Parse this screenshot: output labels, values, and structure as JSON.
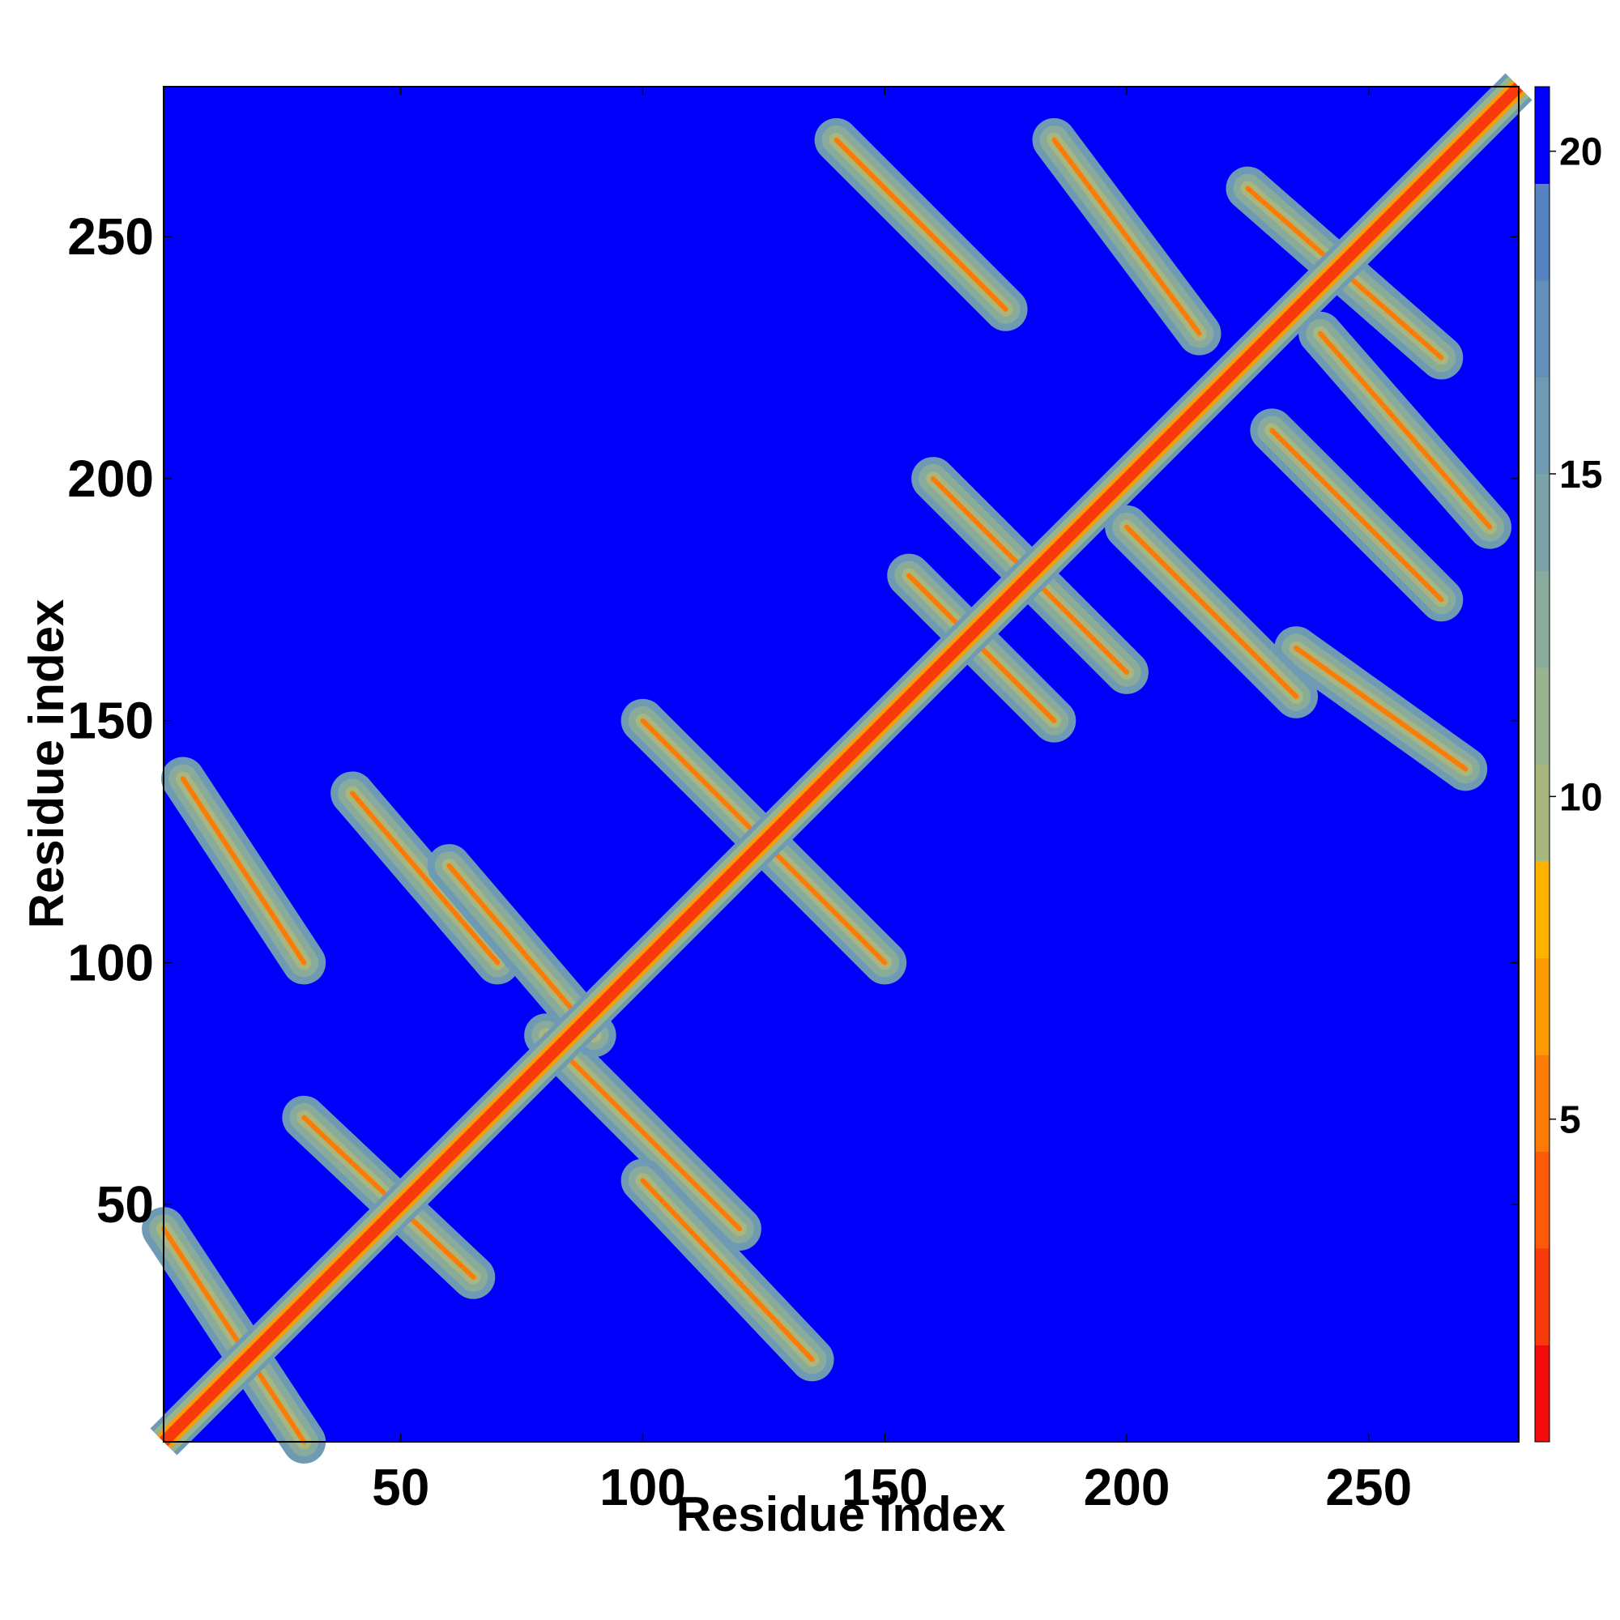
{
  "chart_data": {
    "type": "heatmap",
    "title": "",
    "xlabel": "Residue index",
    "ylabel": "Residue index",
    "xlim": [
      1,
      281
    ],
    "ylim": [
      1,
      281
    ],
    "x_ticks": [
      50,
      100,
      150,
      200,
      250
    ],
    "y_ticks": [
      50,
      100,
      150,
      200,
      250
    ],
    "colorbar": {
      "range": [
        0,
        21
      ],
      "ticks": [
        5,
        10,
        15,
        20
      ],
      "colors": [
        "#f20c0c",
        "#f83a0a",
        "#fb5a08",
        "#fd7a05",
        "#fe9a04",
        "#ffb300",
        "#a9b77f",
        "#98b48e",
        "#88ab9c",
        "#7aa3a8",
        "#6e9ab3",
        "#628fbb",
        "#5784c1",
        "#0000fa"
      ]
    },
    "background_value": 21,
    "diagonal_band": {
      "core_value": 2,
      "half_width_residues": 3
    },
    "contact_bands": [
      {
        "from": [
          1,
          45
        ],
        "to": [
          30,
          1
        ],
        "value": 9
      },
      {
        "from": [
          30,
          68
        ],
        "to": [
          65,
          35
        ],
        "value": 9
      },
      {
        "from": [
          80,
          85
        ],
        "to": [
          120,
          45
        ],
        "value": 9
      },
      {
        "from": [
          100,
          55
        ],
        "to": [
          135,
          18
        ],
        "value": 9
      },
      {
        "from": [
          5,
          138
        ],
        "to": [
          30,
          100
        ],
        "value": 9
      },
      {
        "from": [
          40,
          135
        ],
        "to": [
          70,
          100
        ],
        "value": 10
      },
      {
        "from": [
          60,
          120
        ],
        "to": [
          90,
          85
        ],
        "value": 10
      },
      {
        "from": [
          100,
          150
        ],
        "to": [
          150,
          100
        ],
        "value": 9
      },
      {
        "from": [
          155,
          180
        ],
        "to": [
          185,
          150
        ],
        "value": 9
      },
      {
        "from": [
          160,
          200
        ],
        "to": [
          200,
          160
        ],
        "value": 9
      },
      {
        "from": [
          140,
          270
        ],
        "to": [
          175,
          235
        ],
        "value": 9
      },
      {
        "from": [
          185,
          270
        ],
        "to": [
          215,
          230
        ],
        "value": 9
      },
      {
        "from": [
          225,
          260
        ],
        "to": [
          265,
          225
        ],
        "value": 9
      },
      {
        "from": [
          230,
          210
        ],
        "to": [
          265,
          175
        ],
        "value": 9
      },
      {
        "from": [
          240,
          230
        ],
        "to": [
          275,
          190
        ],
        "value": 9
      },
      {
        "from": [
          235,
          165
        ],
        "to": [
          270,
          140
        ],
        "value": 9
      },
      {
        "from": [
          200,
          190
        ],
        "to": [
          235,
          155
        ],
        "value": 10
      }
    ]
  }
}
